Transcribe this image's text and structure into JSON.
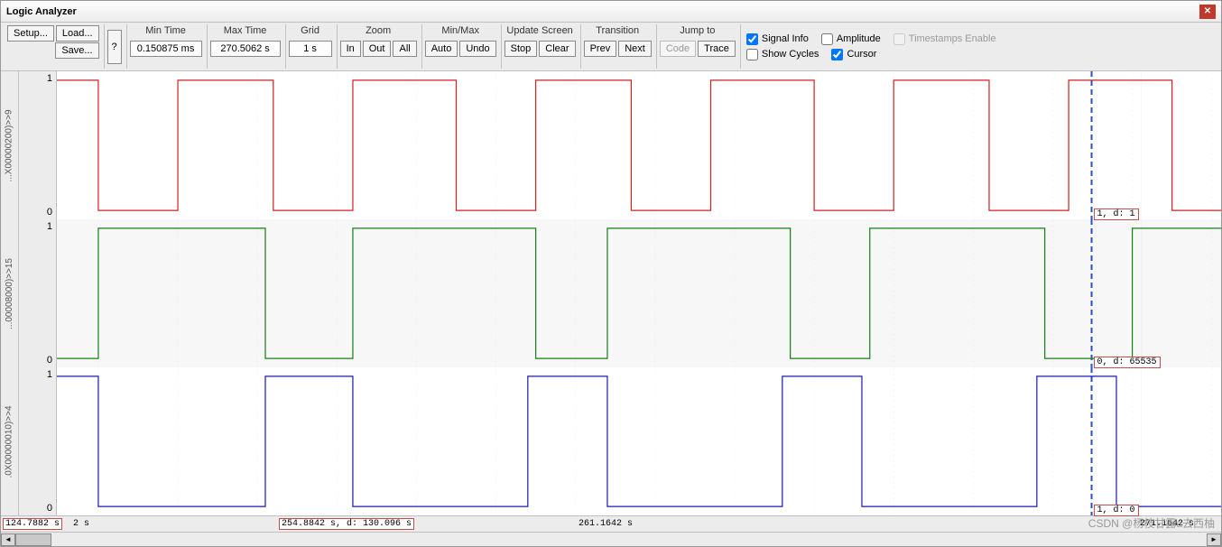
{
  "window": {
    "title": "Logic Analyzer"
  },
  "toolbar": {
    "setup": "Setup...",
    "load": "Load...",
    "save": "Save...",
    "help": "?",
    "min_time_label": "Min Time",
    "min_time_val": "0.150875 ms",
    "max_time_label": "Max Time",
    "max_time_val": "270.5062 s",
    "grid_label": "Grid",
    "grid_val": "1 s",
    "zoom_label": "Zoom",
    "zoom_in": "In",
    "zoom_out": "Out",
    "zoom_all": "All",
    "minmax_label": "Min/Max",
    "auto": "Auto",
    "undo": "Undo",
    "update_label": "Update Screen",
    "stop": "Stop",
    "clear": "Clear",
    "transition_label": "Transition",
    "prev": "Prev",
    "next": "Next",
    "jump_label": "Jump to",
    "code": "Code",
    "trace": "Trace"
  },
  "checks": {
    "signal_info": "Signal Info",
    "signal_info_checked": true,
    "amplitude": "Amplitude",
    "amplitude_checked": false,
    "timestamps": "Timestamps Enable",
    "timestamps_checked": false,
    "timestamps_disabled": true,
    "show_cycles": "Show Cycles",
    "show_cycles_checked": false,
    "cursor": "Cursor",
    "cursor_checked": true
  },
  "waveform": {
    "x_min": 124.7882,
    "x_max": 271.1642,
    "cursor_x": 254.8842,
    "center_time": 261.1642,
    "background_color": "#ffffff",
    "alt_background_color": "#f7f7f7",
    "grid_color": "#bfbfbf",
    "grid_dash": "3,3",
    "cursor_color": "#2d4fc9",
    "tick_step": 10,
    "line_width": 1.2,
    "tracks": [
      {
        "name": "...X00000200)>>9",
        "color": "#d02020",
        "y_low": "0",
        "y_high": "1",
        "edges": [
          130,
          140,
          152,
          162,
          175,
          185,
          197,
          207,
          220,
          230,
          242,
          252,
          265
        ],
        "start_level": 1,
        "cursor_readout": "1,  d: 1"
      },
      {
        "name": "...00008000)>>15",
        "color": "#108010",
        "y_low": "0",
        "y_high": "1",
        "edges": [
          130,
          151,
          162,
          185,
          194,
          217,
          227,
          249,
          260
        ],
        "start_level": 0,
        "cursor_readout": "0,  d: 65535"
      },
      {
        "name": ".0X00000010)>>4",
        "color": "#1818b0",
        "y_low": "0",
        "y_high": "1",
        "edges": [
          130,
          151,
          162,
          184,
          194,
          216,
          226,
          248,
          258
        ],
        "start_level": 1,
        "cursor_readout": "1,  d: 0"
      }
    ]
  },
  "timeline": {
    "left_readout": "124.7882 s",
    "left_extra": "2 s",
    "selection_readout": "254.8842 s,  d: 130.096 s",
    "center_readout": "261.1642 s",
    "right_readout": "271.1642 s"
  },
  "watermark": "CSDN @杨枝甘露a去西柚"
}
